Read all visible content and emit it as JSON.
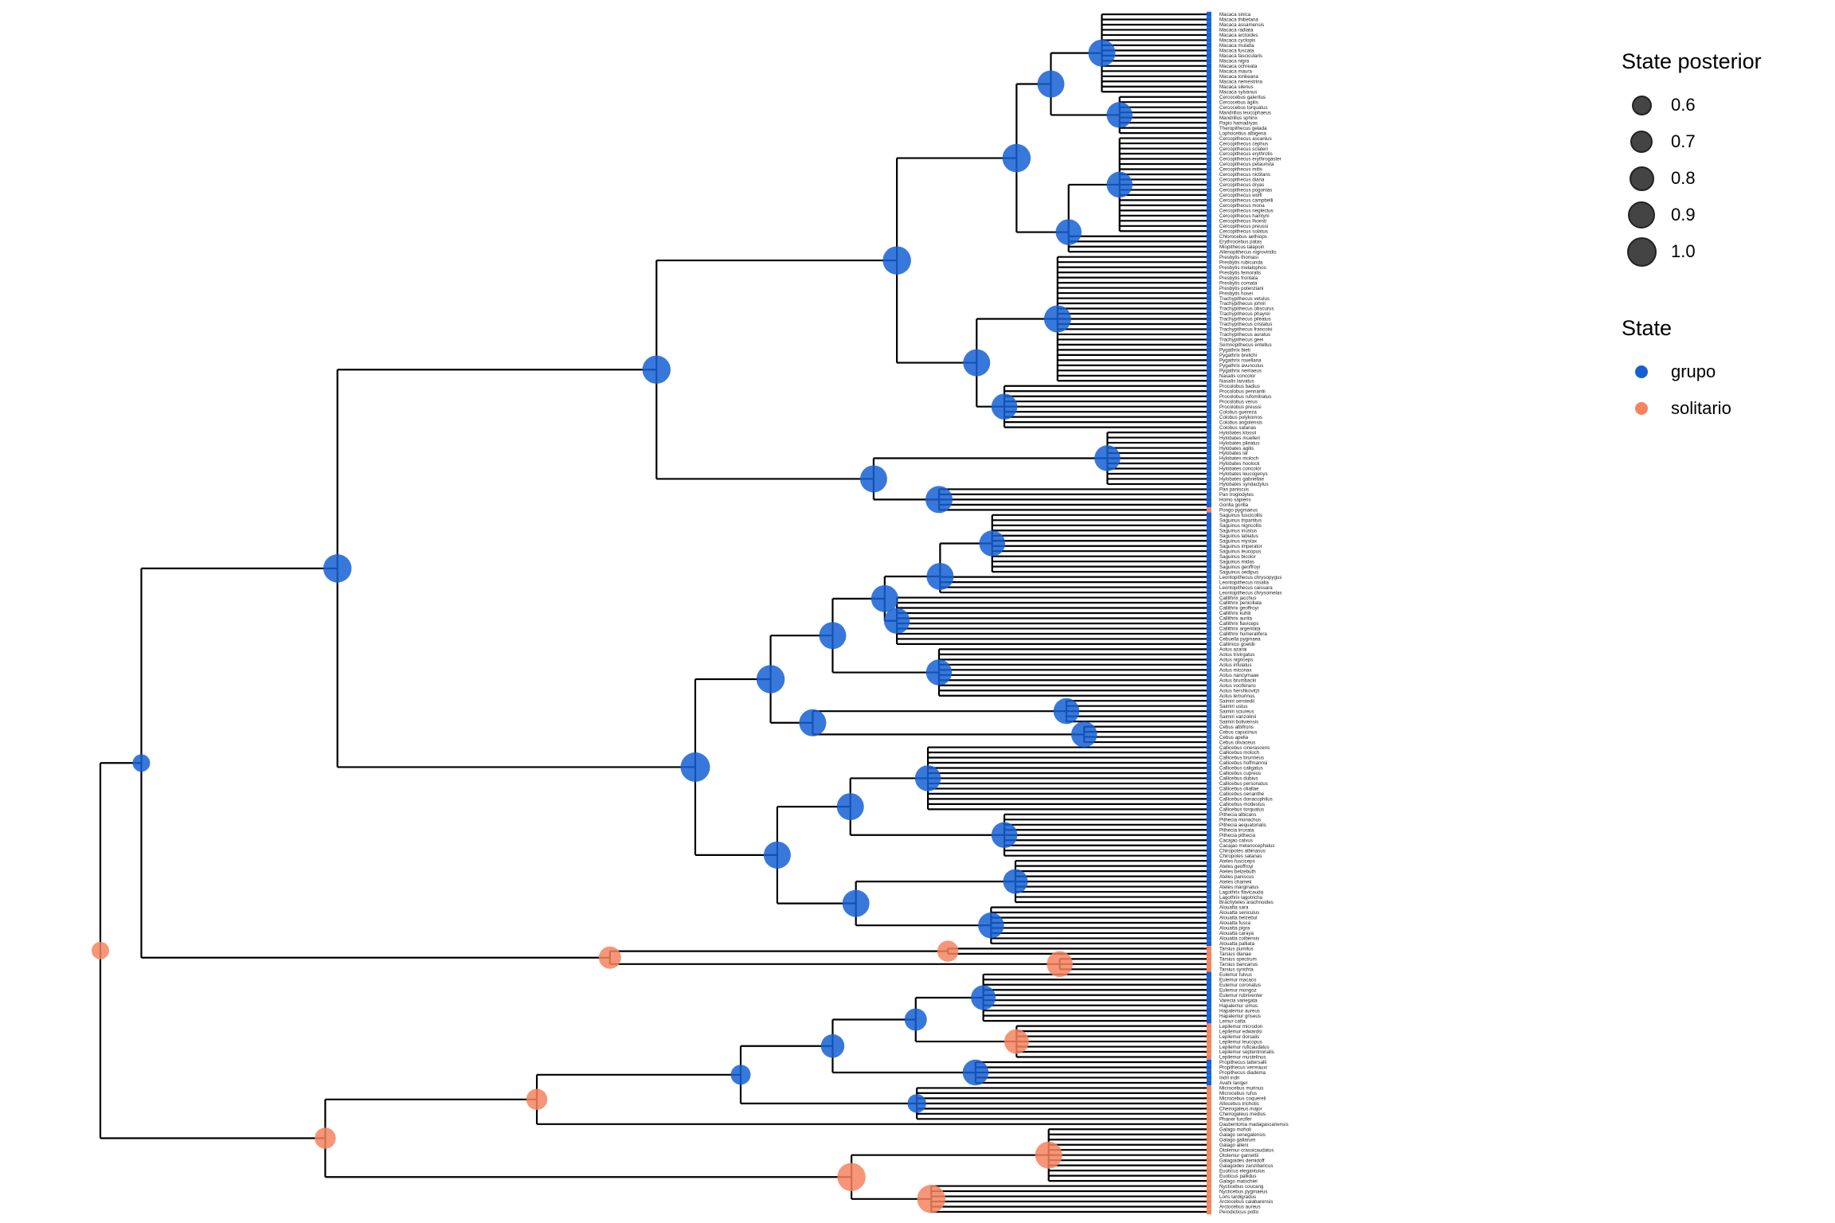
{
  "legend": {
    "posterior_title": "State posterior",
    "posterior_levels": [
      "0.6",
      "0.7",
      "0.8",
      "0.9",
      "1.0"
    ],
    "state_title": "State",
    "states": [
      {
        "label": "grupo",
        "color": "#1560d4"
      },
      {
        "label": "solitario",
        "color": "#f4845f"
      }
    ]
  },
  "chart_data": {
    "type": "phylogenetic-tree",
    "title": "",
    "tips": [
      "Macaca sinica",
      "Macaca thibetana",
      "Macaca assamensis",
      "Macaca radiata",
      "Macaca arctoides",
      "Macaca cyclopis",
      "Macaca mulatta",
      "Macaca fuscata",
      "Macaca fascicularis",
      "Macaca nigra",
      "Macaca ochreata",
      "Macaca maura",
      "Macaca tonkeana",
      "Macaca nemestrina",
      "Macaca silenus",
      "Macaca sylvanus",
      "Cercocebus galeritus",
      "Cercocebus agilis",
      "Cercocebus torquatus",
      "Mandrillus leucophaeus",
      "Mandrillus sphinx",
      "Papio hamadryas",
      "Theropithecus gelada",
      "Lophocebus albigena",
      "Cercopithecus ascanius",
      "Cercopithecus cephus",
      "Cercopithecus sclateri",
      "Cercopithecus erythrotis",
      "Cercopithecus erythrogaster",
      "Cercopithecus petaurista",
      "Cercopithecus mitis",
      "Cercopithecus nictitans",
      "Cercopithecus diana",
      "Cercopithecus dryas",
      "Cercopithecus pogonias",
      "Cercopithecus wolfi",
      "Cercopithecus campbelli",
      "Cercopithecus mona",
      "Cercopithecus neglectus",
      "Cercopithecus hamlyni",
      "Cercopithecus lhoesti",
      "Cercopithecus preussi",
      "Cercopithecus solatus",
      "Chlorocebus aethiops",
      "Erythrocebus patas",
      "Miopithecus talapoin",
      "Allenopithecus nigroviridis",
      "Presbytis thomasi",
      "Presbytis rubicunda",
      "Presbytis melalophos",
      "Presbytis femoralis",
      "Presbytis frontata",
      "Presbytis comata",
      "Presbytis potenziani",
      "Presbytis hosei",
      "Trachypithecus vetulus",
      "Trachypithecus johnii",
      "Trachypithecus obscurus",
      "Trachypithecus phayrei",
      "Trachypithecus pileatus",
      "Trachypithecus cristatus",
      "Trachypithecus francoisi",
      "Trachypithecus auratus",
      "Trachypithecus geei",
      "Semnopithecus entellus",
      "Pygathrix bieti",
      "Pygathrix brelichi",
      "Pygathrix roxellana",
      "Pygathrix avunculus",
      "Pygathrix nemaeus",
      "Nasalis concolor",
      "Nasalis larvatus",
      "Procolobus badius",
      "Procolobus pennantii",
      "Procolobus rufomitratus",
      "Procolobus verus",
      "Procolobus preussi",
      "Colobus guereza",
      "Colobus polykomos",
      "Colobus angolensis",
      "Colobus satanas",
      "Hylobates klossii",
      "Hylobates muelleri",
      "Hylobates pileatus",
      "Hylobates agilis",
      "Hylobates lar",
      "Hylobates moloch",
      "Hylobates hoolock",
      "Hylobates concolor",
      "Hylobates leucogenys",
      "Hylobates gabriellae",
      "Hylobates syndactylus",
      "Pan paniscus",
      "Pan troglodytes",
      "Homo sapiens",
      "Gorilla gorilla",
      "Pongo pygmaeus",
      "Saguinus fuscicollis",
      "Saguinus tripartitus",
      "Saguinus nigricollis",
      "Saguinus inustus",
      "Saguinus labiatus",
      "Saguinus mystax",
      "Saguinus imperator",
      "Saguinus leucopus",
      "Saguinus bicolor",
      "Saguinus midas",
      "Saguinus geoffroyi",
      "Saguinus oedipus",
      "Leontopithecus chrysopygus",
      "Leontopithecus rosalia",
      "Leontopithecus caissara",
      "Leontopithecus chrysomelas",
      "Callithrix jacchus",
      "Callithrix penicillata",
      "Callithrix geoffroyi",
      "Callithrix kuhlii",
      "Callithrix aurita",
      "Callithrix flaviceps",
      "Callithrix argentata",
      "Callithrix humeralifera",
      "Cebuella pygmaea",
      "Callimico goeldii",
      "Aotus azarai",
      "Aotus trivirgatus",
      "Aotus nigriceps",
      "Aotus infulatus",
      "Aotus miconax",
      "Aotus nancymaae",
      "Aotus brumbacki",
      "Aotus vociferans",
      "Aotus hershkovitzi",
      "Aotus lemurinus",
      "Saimiri oerstedii",
      "Saimiri ustus",
      "Saimiri sciureus",
      "Saimiri vanzolinii",
      "Saimiri boliviensis",
      "Cebus albifrons",
      "Cebus capucinus",
      "Cebus apella",
      "Cebus olivaceus",
      "Callicebus cinerascens",
      "Callicebus moloch",
      "Callicebus brunneus",
      "Callicebus hoffmannsi",
      "Callicebus caligatus",
      "Callicebus cupreus",
      "Callicebus dubius",
      "Callicebus personatus",
      "Callicebus oliallae",
      "Callicebus oenanthe",
      "Callicebus donacophilus",
      "Callicebus modestus",
      "Callicebus torquatus",
      "Pithecia albicans",
      "Pithecia monachus",
      "Pithecia aequatorialis",
      "Pithecia irrorata",
      "Pithecia pithecia",
      "Cacajao calvus",
      "Cacajao melanocephalus",
      "Chiropotes albinasus",
      "Chiropotes satanas",
      "Ateles fusciceps",
      "Ateles geoffroyi",
      "Ateles belzebuth",
      "Ateles paniscus",
      "Ateles chamek",
      "Ateles marginatus",
      "Lagothrix flavicauda",
      "Lagothrix lagotricha",
      "Brachyteles arachnoides",
      "Alouatta sara",
      "Alouatta seniculus",
      "Alouatta belzebul",
      "Alouatta fusca",
      "Alouatta pigra",
      "Alouatta caraya",
      "Alouatta coibensis",
      "Alouatta palliata",
      "Tarsius pumilus",
      "Tarsius dianae",
      "Tarsius spectrum",
      "Tarsius bancanus",
      "Tarsius syrichta",
      "Eulemur fulvus",
      "Eulemur macaco",
      "Eulemur coronatus",
      "Eulemur mongoz",
      "Eulemur rubriventer",
      "Varecia variegata",
      "Hapalemur simus",
      "Hapalemur aureus",
      "Hapalemur griseus",
      "Lemur catta",
      "Lepilemur microdon",
      "Lepilemur edwardsi",
      "Lepilemur dorsalis",
      "Lepilemur leucopus",
      "Lepilemur ruficaudatus",
      "Lepilemur septentrionalis",
      "Lepilemur mustelinus",
      "Propithecus tattersalli",
      "Propithecus verreauxi",
      "Propithecus diadema",
      "Indri indri",
      "Avahi laniger",
      "Microcebus murinus",
      "Microcebus rufus",
      "Microcebus coquereli",
      "Allocebus trichotis",
      "Cheirogaleus major",
      "Cheirogaleus medius",
      "Phaner furcifer",
      "Daubentonia madagascariensis",
      "Galago moholi",
      "Galago senegalensis",
      "Galago gallarum",
      "Galago alleni",
      "Otolemur crassicaudatus",
      "Otolemur garnettii",
      "Galagoides demidoff",
      "Galagoides zanzibaricus",
      "Euoticus elegantulus",
      "Euoticus pallidus",
      "Galago matschiei",
      "Nycticebus coucang",
      "Nycticebus pygmaeus",
      "Loris tardigradus",
      "Arctocebus calabarensis",
      "Arctocebus aureus",
      "Perodicticus potto"
    ],
    "solitario_tip_ranges": [
      [
        96,
        96
      ],
      [
        181,
        185
      ],
      [
        196,
        202
      ],
      [
        208,
        232
      ]
    ],
    "nodes": [
      {
        "tips": [
          0,
          232
        ],
        "depth": 0,
        "state": "solitario",
        "posterior": 0.5
      },
      {
        "tips": [
          0,
          185
        ],
        "depth": 3.7,
        "state": "grupo",
        "posterior": 0.5
      },
      {
        "tips": [
          0,
          180
        ],
        "depth": 21.4,
        "state": "grupo",
        "posterior": 0.95
      },
      {
        "tips": [
          0,
          96
        ],
        "depth": 50.2,
        "state": "grupo",
        "posterior": 0.95
      },
      {
        "tips": [
          0,
          80
        ],
        "depth": 71.9,
        "state": "grupo",
        "posterior": 0.95
      },
      {
        "tips": [
          0,
          46
        ],
        "depth": 82.7,
        "state": "grupo",
        "posterior": 0.95
      },
      {
        "tips": [
          0,
          23
        ],
        "depth": 85.8,
        "state": "grupo",
        "posterior": 0.9
      },
      {
        "tips": [
          0,
          15
        ],
        "depth": 90.4,
        "state": "grupo",
        "posterior": 0.9
      },
      {
        "tips": [
          16,
          23
        ],
        "depth": 92,
        "state": "grupo",
        "posterior": 0.85
      },
      {
        "tips": [
          24,
          46
        ],
        "depth": 87.4,
        "state": "grupo",
        "posterior": 0.85
      },
      {
        "tips": [
          24,
          42
        ],
        "depth": 92,
        "state": "grupo",
        "posterior": 0.85
      },
      {
        "tips": [
          47,
          80
        ],
        "depth": 79.1,
        "state": "grupo",
        "posterior": 0.9
      },
      {
        "tips": [
          47,
          71
        ],
        "depth": 86.4,
        "state": "grupo",
        "posterior": 0.9
      },
      {
        "tips": [
          72,
          80
        ],
        "depth": 81.6,
        "state": "grupo",
        "posterior": 0.85
      },
      {
        "tips": [
          81,
          96
        ],
        "depth": 69.8,
        "state": "grupo",
        "posterior": 0.9
      },
      {
        "tips": [
          81,
          91
        ],
        "depth": 90.9,
        "state": "grupo",
        "posterior": 0.85
      },
      {
        "tips": [
          92,
          96
        ],
        "depth": 75.7,
        "state": "grupo",
        "posterior": 0.9
      },
      {
        "tips": [
          97,
          180
        ],
        "depth": 53.7,
        "state": "grupo",
        "posterior": 1.0
      },
      {
        "tips": [
          97,
          141
        ],
        "depth": 60.5,
        "state": "grupo",
        "posterior": 0.95
      },
      {
        "tips": [
          97,
          132
        ],
        "depth": 66.1,
        "state": "grupo",
        "posterior": 0.9
      },
      {
        "tips": [
          97,
          122
        ],
        "depth": 70.8,
        "state": "grupo",
        "posterior": 0.9
      },
      {
        "tips": [
          97,
          112
        ],
        "depth": 75.8,
        "state": "grupo",
        "posterior": 0.9
      },
      {
        "tips": [
          97,
          108
        ],
        "depth": 80.5,
        "state": "grupo",
        "posterior": 0.85
      },
      {
        "tips": [
          113,
          122
        ],
        "depth": 71.9,
        "state": "grupo",
        "posterior": 0.85
      },
      {
        "tips": [
          123,
          132
        ],
        "depth": 75.7,
        "state": "grupo",
        "posterior": 0.85
      },
      {
        "tips": [
          133,
          141
        ],
        "depth": 64.3,
        "state": "grupo",
        "posterior": 0.9
      },
      {
        "tips": [
          133,
          137
        ],
        "depth": 87.2,
        "state": "grupo",
        "posterior": 0.85
      },
      {
        "tips": [
          138,
          141
        ],
        "depth": 88.8,
        "state": "grupo",
        "posterior": 0.85
      },
      {
        "tips": [
          142,
          180
        ],
        "depth": 61.1,
        "state": "grupo",
        "posterior": 0.9
      },
      {
        "tips": [
          142,
          163
        ],
        "depth": 67.7,
        "state": "grupo",
        "posterior": 0.9
      },
      {
        "tips": [
          142,
          154
        ],
        "depth": 74.7,
        "state": "grupo",
        "posterior": 0.85
      },
      {
        "tips": [
          155,
          163
        ],
        "depth": 81.6,
        "state": "grupo",
        "posterior": 0.85
      },
      {
        "tips": [
          164,
          180
        ],
        "depth": 68.2,
        "state": "grupo",
        "posterior": 0.9
      },
      {
        "tips": [
          164,
          172
        ],
        "depth": 82.6,
        "state": "grupo",
        "posterior": 0.8
      },
      {
        "tips": [
          173,
          180
        ],
        "depth": 80.4,
        "state": "grupo",
        "posterior": 0.85
      },
      {
        "tips": [
          181,
          185
        ],
        "depth": 46.0,
        "state": "solitario",
        "posterior": 0.7
      },
      {
        "tips": [
          181,
          182
        ],
        "depth": 76.5,
        "state": "solitario",
        "posterior": 0.65
      },
      {
        "tips": [
          183,
          185
        ],
        "depth": 86.6,
        "state": "solitario",
        "posterior": 0.85
      },
      {
        "tips": [
          186,
          232
        ],
        "depth": 20.3,
        "state": "solitario",
        "posterior": 0.65
      },
      {
        "tips": [
          186,
          215
        ],
        "depth": 39.4,
        "state": "solitario",
        "posterior": 0.65
      },
      {
        "tips": [
          186,
          214
        ],
        "depth": 57.8,
        "state": "grupo",
        "posterior": 0.6
      },
      {
        "tips": [
          186,
          207
        ],
        "depth": 66.1,
        "state": "grupo",
        "posterior": 0.75
      },
      {
        "tips": [
          186,
          202
        ],
        "depth": 73.6,
        "state": "grupo",
        "posterior": 0.7
      },
      {
        "tips": [
          186,
          195
        ],
        "depth": 79.7,
        "state": "grupo",
        "posterior": 0.8
      },
      {
        "tips": [
          196,
          202
        ],
        "depth": 82.7,
        "state": "solitario",
        "posterior": 0.8
      },
      {
        "tips": [
          203,
          207
        ],
        "depth": 79.0,
        "state": "grupo",
        "posterior": 0.85
      },
      {
        "tips": [
          208,
          214
        ],
        "depth": 73.7,
        "state": "grupo",
        "posterior": 0.55
      },
      {
        "tips": [
          216,
          232
        ],
        "depth": 67.8,
        "state": "solitario",
        "posterior": 0.95
      },
      {
        "tips": [
          216,
          226
        ],
        "depth": 85.6,
        "state": "solitario",
        "posterior": 0.9
      },
      {
        "tips": [
          227,
          232
        ],
        "depth": 75.0,
        "state": "solitario",
        "posterior": 0.95
      }
    ]
  }
}
